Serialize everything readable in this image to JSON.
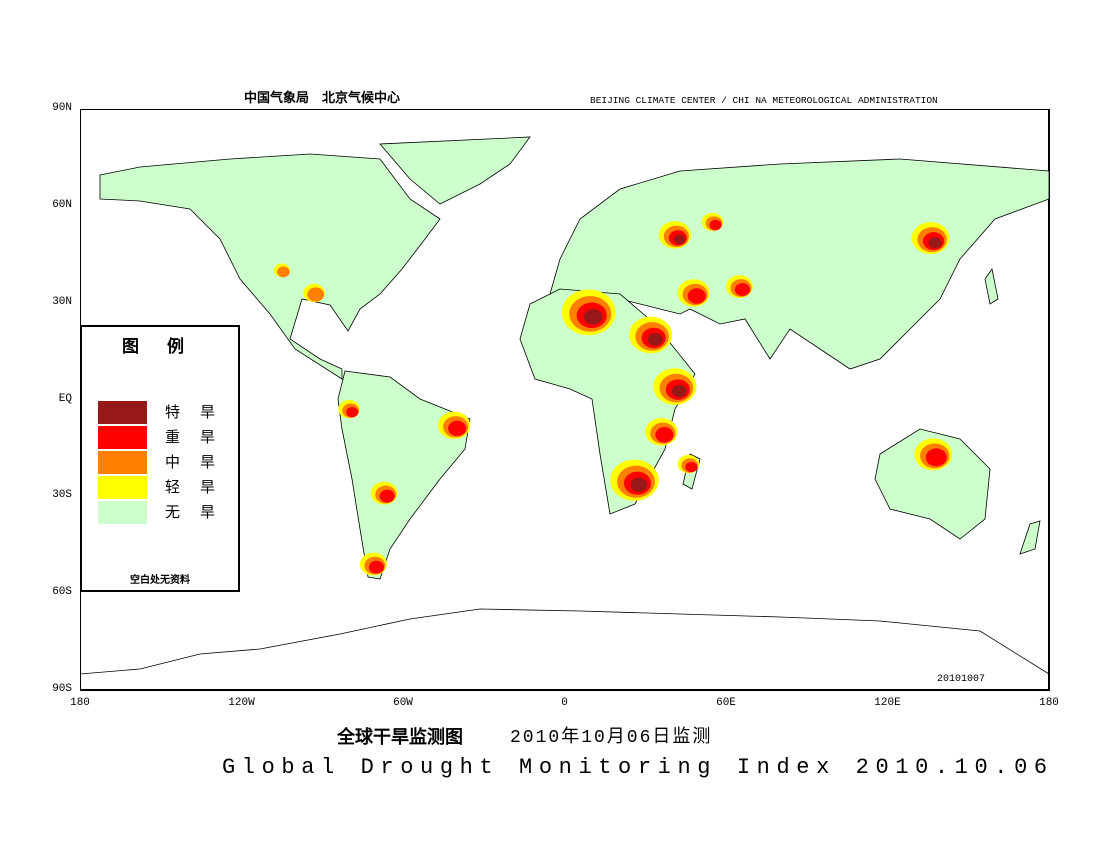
{
  "header": {
    "org_cn": "中国气象局　北京气候中心",
    "org_en": "BEIJING CLIMATE CENTER / CHI NA METEOROLOGICAL ADMINISTRATION"
  },
  "axes": {
    "lat_ticks": [
      "90N",
      "60N",
      "30N",
      "EQ",
      "30S",
      "60S",
      "90S"
    ],
    "lat_values": [
      90,
      60,
      30,
      0,
      -30,
      -60,
      -90
    ],
    "lon_ticks": [
      "180",
      "120W",
      "60W",
      "0",
      "60E",
      "120E",
      "180"
    ],
    "lon_values": [
      -180,
      -120,
      -60,
      0,
      60,
      120,
      180
    ]
  },
  "legend": {
    "title": "图例",
    "items": [
      {
        "label": "特旱",
        "color": "#961818"
      },
      {
        "label": "重旱",
        "color": "#ff0000"
      },
      {
        "label": "中旱",
        "color": "#ff8000"
      },
      {
        "label": "轻旱",
        "color": "#ffff00"
      },
      {
        "label": "无旱",
        "color": "#ccffcc"
      }
    ],
    "note": "空白处无资料"
  },
  "colors": {
    "land": "#ccffcc",
    "ocean": "#ffffff",
    "border": "#000000"
  },
  "drought_regions": [
    {
      "name": "sahara",
      "lon": 9,
      "lat": 27,
      "severity": 4,
      "radius": 10
    },
    {
      "name": "sudan-egypt",
      "lon": 32,
      "lat": 20,
      "severity": 4,
      "radius": 8
    },
    {
      "name": "east-africa",
      "lon": 41,
      "lat": 4,
      "severity": 4,
      "radius": 8
    },
    {
      "name": "east-africa-south",
      "lon": 36,
      "lat": -10,
      "severity": 3,
      "radius": 6
    },
    {
      "name": "southern-africa",
      "lon": 26,
      "lat": -25,
      "severity": 4,
      "radius": 9
    },
    {
      "name": "madagascar",
      "lon": 46,
      "lat": -20,
      "severity": 3,
      "radius": 4
    },
    {
      "name": "northern-australia",
      "lon": 137,
      "lat": -17,
      "severity": 3,
      "radius": 7
    },
    {
      "name": "western-russia",
      "lon": 41,
      "lat": 51,
      "severity": 4,
      "radius": 6
    },
    {
      "name": "russia-east",
      "lon": 55,
      "lat": 55,
      "severity": 3,
      "radius": 4
    },
    {
      "name": "northeast-china",
      "lon": 136,
      "lat": 50,
      "severity": 4,
      "radius": 7
    },
    {
      "name": "middle-east",
      "lon": 48,
      "lat": 33,
      "severity": 3,
      "radius": 6
    },
    {
      "name": "central-asia",
      "lon": 65,
      "lat": 35,
      "severity": 3,
      "radius": 5
    },
    {
      "name": "brazil-east",
      "lon": -41,
      "lat": -8,
      "severity": 3,
      "radius": 6
    },
    {
      "name": "argentina",
      "lon": -67,
      "lat": -29,
      "severity": 3,
      "radius": 5
    },
    {
      "name": "patagonia",
      "lon": -71,
      "lat": -51,
      "severity": 3,
      "radius": 5
    },
    {
      "name": "southern-us",
      "lon": -93,
      "lat": 33,
      "severity": 2,
      "radius": 4
    },
    {
      "name": "peru",
      "lon": -80,
      "lat": -3,
      "severity": 3,
      "radius": 4
    },
    {
      "name": "canada",
      "lon": -105,
      "lat": 40,
      "severity": 2,
      "radius": 3
    }
  ],
  "date_code": "20101007",
  "title": {
    "cn": "全球干旱监测图",
    "cn_date": "2010年10月06日监测",
    "en": "Global Drought Monitoring Index  2010.10.06"
  }
}
